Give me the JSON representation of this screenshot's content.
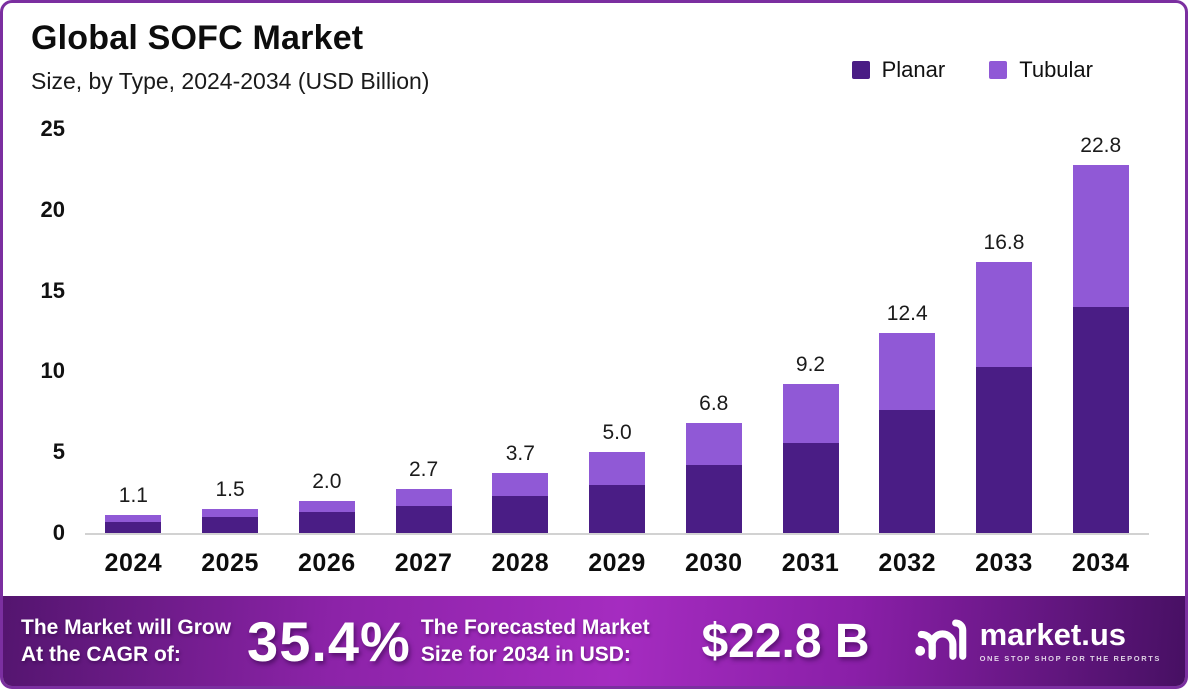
{
  "header": {
    "title": "Global SOFC Market",
    "subtitle": "Size, by Type, 2024-2034 (USD Billion)"
  },
  "legend": [
    {
      "label": "Planar",
      "color": "#4a1d85"
    },
    {
      "label": "Tubular",
      "color": "#9059d6"
    }
  ],
  "chart_data": {
    "type": "bar",
    "stacked": true,
    "title": "Global SOFC Market",
    "subtitle": "Size, by Type, 2024-2034 (USD Billion)",
    "xlabel": "",
    "ylabel": "",
    "grid": false,
    "legend_position": "top-right",
    "ylim": [
      0,
      25
    ],
    "yticks": [
      0,
      5,
      10,
      15,
      20,
      25
    ],
    "categories": [
      "2024",
      "2025",
      "2026",
      "2027",
      "2028",
      "2029",
      "2030",
      "2031",
      "2032",
      "2033",
      "2034"
    ],
    "series": [
      {
        "name": "Planar",
        "color": "#4a1d85",
        "values": [
          0.7,
          1.0,
          1.3,
          1.7,
          2.3,
          3.0,
          4.2,
          5.6,
          7.6,
          10.3,
          14.0
        ]
      },
      {
        "name": "Tubular",
        "color": "#9059d6",
        "values": [
          0.4,
          0.5,
          0.7,
          1.0,
          1.4,
          2.0,
          2.6,
          3.6,
          4.8,
          6.5,
          8.8
        ]
      }
    ],
    "totals": [
      1.1,
      1.5,
      2.0,
      2.7,
      3.7,
      5.0,
      6.8,
      9.2,
      12.4,
      16.8,
      22.8
    ],
    "total_labels": [
      "1.1",
      "1.5",
      "2.0",
      "2.7",
      "3.7",
      "5.0",
      "6.8",
      "9.2",
      "12.4",
      "16.8",
      "22.8"
    ]
  },
  "banner": {
    "left_line1": "The Market will Grow",
    "left_line2": "At the CAGR of:",
    "cagr": "35.4%",
    "mid_line1": "The Forecasted Market",
    "mid_line2": "Size for 2034 in USD:",
    "forecast_value": "$22.8 B",
    "logo_text": "market.us",
    "logo_tagline": "ONE STOP SHOP FOR THE REPORTS",
    "logo_icon": "market-us-swirl-icon"
  },
  "colors": {
    "frame_border": "#7b2fa0",
    "baseline": "#d2d2d2",
    "banner_gradient": [
      "#54156f",
      "#a52cc0",
      "#471063"
    ],
    "text": "#0d0d0d"
  }
}
